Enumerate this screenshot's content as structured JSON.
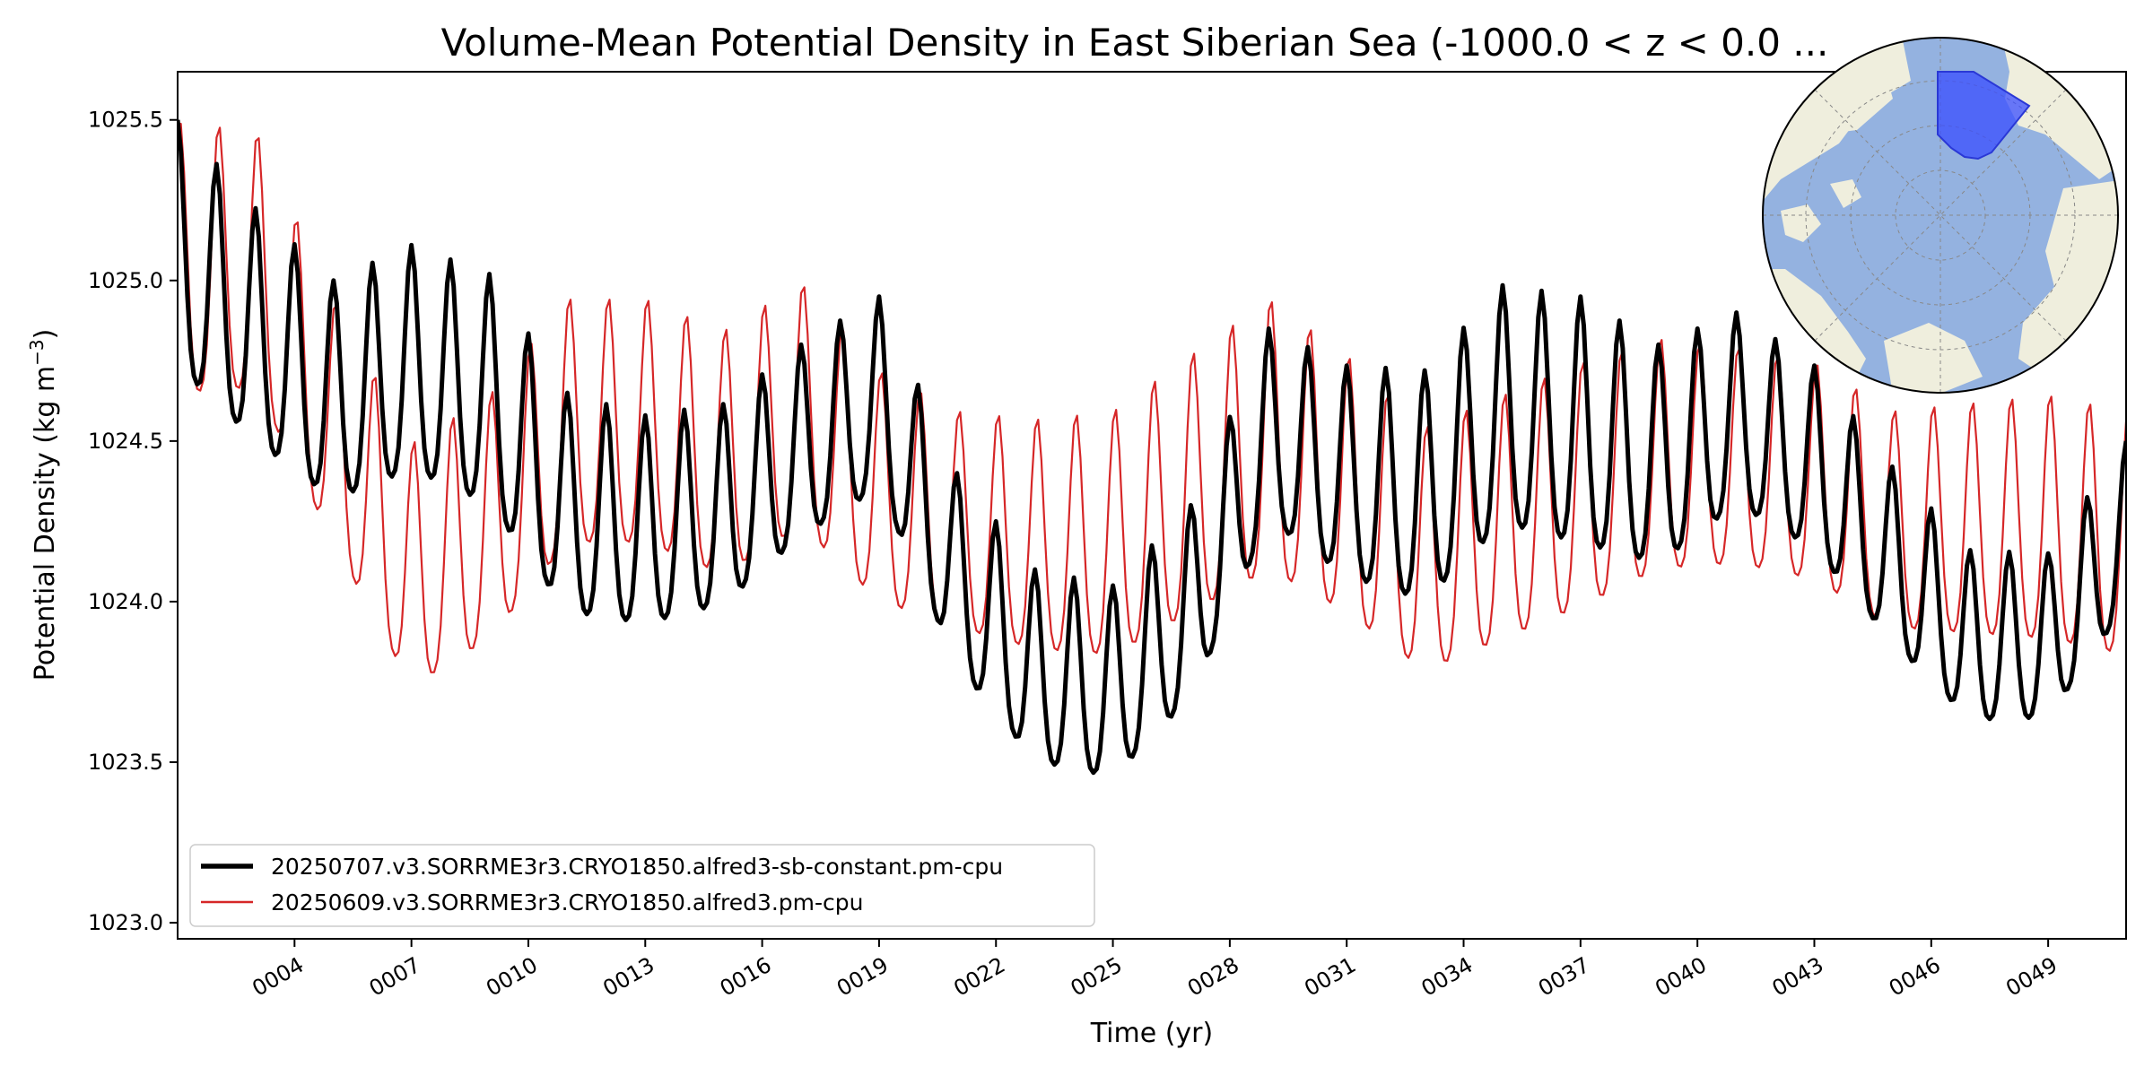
{
  "chart_data": {
    "type": "line",
    "title": "Volume-Mean Potential Density in East Siberian Sea (-1000.0 < z < 0.0 ...",
    "xlabel": "Time (yr)",
    "ylabel": "Potential Density (kg m",
    "ylabel_sup": "−3",
    "ylabel_end": ")",
    "xlim": [
      1,
      51.0
    ],
    "ylim": [
      1022.95,
      1025.65
    ],
    "xticks": [
      4,
      7,
      10,
      13,
      16,
      19,
      22,
      25,
      28,
      31,
      34,
      37,
      40,
      43,
      46,
      49
    ],
    "xtick_labels": [
      "0004",
      "0007",
      "0010",
      "0013",
      "0016",
      "0019",
      "0022",
      "0025",
      "0028",
      "0031",
      "0034",
      "0037",
      "0040",
      "0043",
      "0046",
      "0049"
    ],
    "yticks": [
      1023.0,
      1023.5,
      1024.0,
      1024.5,
      1025.0,
      1025.5
    ],
    "ytick_labels": [
      "1023.0",
      "1023.5",
      "1024.0",
      "1024.5",
      "1025.0",
      "1025.5"
    ],
    "grid": false,
    "legend_position": "lower-left",
    "series": [
      {
        "name": "20250707.v3.SORRME3r3.CRYO1850.alfred3-sb-constant.pm-cpu",
        "color": "#000000",
        "style": "thick",
        "mean_anchor_years": [
          1,
          3,
          5,
          7,
          9,
          11,
          13,
          15,
          17,
          19,
          21,
          23,
          25,
          27,
          29,
          31,
          33,
          35,
          37,
          39,
          41,
          43,
          45,
          47,
          49,
          51
        ],
        "mean_anchor_values": [
          1025.05,
          1024.8,
          1024.6,
          1024.7,
          1024.6,
          1024.25,
          1024.2,
          1024.25,
          1024.45,
          1024.6,
          1024.05,
          1023.75,
          1023.7,
          1023.95,
          1024.5,
          1024.35,
          1024.3,
          1024.55,
          1024.5,
          1024.4,
          1024.55,
          1024.4,
          1024.1,
          1023.85,
          1023.85,
          1024.2
        ],
        "amp_anchor_years": [
          1,
          5,
          9,
          13,
          17,
          21,
          25,
          29,
          33,
          37,
          41,
          45,
          49,
          51
        ],
        "amp_anchor_values": [
          0.45,
          0.4,
          0.42,
          0.38,
          0.35,
          0.35,
          0.35,
          0.35,
          0.42,
          0.45,
          0.35,
          0.32,
          0.3,
          0.3
        ],
        "phase": 0.0
      },
      {
        "name": "20250609.v3.SORRME3r3.CRYO1850.alfred3.pm-cpu",
        "color": "#d62728",
        "style": "thin",
        "mean_anchor_years": [
          1,
          3,
          5,
          7,
          9,
          11,
          13,
          15,
          17,
          19,
          21,
          23,
          25,
          27,
          29,
          31,
          33,
          35,
          37,
          39,
          41,
          43,
          45,
          47,
          49,
          51
        ],
        "mean_anchor_values": [
          1025.0,
          1025.0,
          1024.5,
          1024.05,
          1024.2,
          1024.5,
          1024.5,
          1024.4,
          1024.55,
          1024.3,
          1024.2,
          1024.15,
          1024.15,
          1024.3,
          1024.45,
          1024.3,
          1024.1,
          1024.2,
          1024.3,
          1024.4,
          1024.4,
          1024.35,
          1024.2,
          1024.2,
          1024.2,
          1024.15
        ],
        "amp_anchor_years": [
          1,
          5,
          9,
          13,
          17,
          21,
          25,
          29,
          33,
          37,
          41,
          45,
          49,
          51
        ],
        "amp_anchor_values": [
          0.5,
          0.45,
          0.45,
          0.45,
          0.45,
          0.4,
          0.45,
          0.5,
          0.45,
          0.45,
          0.4,
          0.4,
          0.45,
          0.45
        ],
        "phase": -0.35
      }
    ]
  },
  "inset_map": {
    "description_icon": "polar-map",
    "ocean_color": "#94b2e0",
    "land_color": "#efeedd",
    "region_color": "#3a4dff"
  }
}
